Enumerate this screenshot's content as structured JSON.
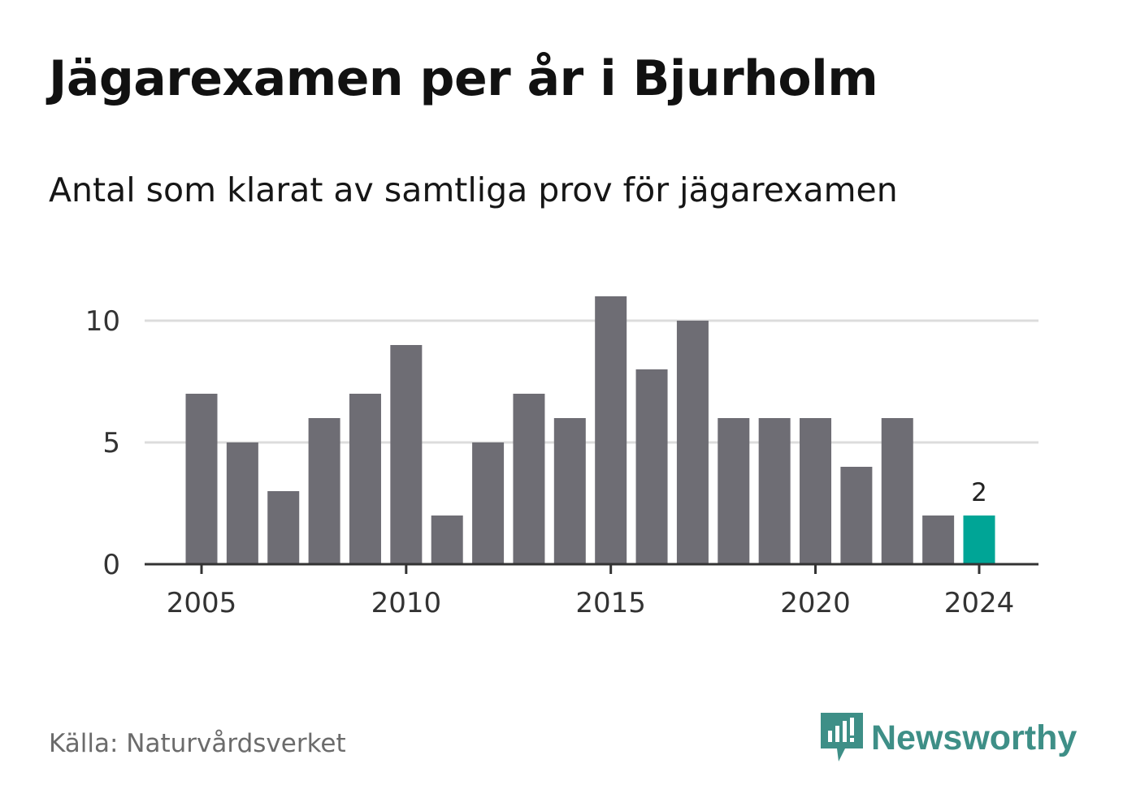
{
  "title": "Jägarexamen per år i Bjurholm",
  "subtitle": "Antal som klarat av samtliga prov för jägarexamen",
  "source": "Källa: Naturvårdsverket",
  "brand": "Newsworthy",
  "colors": {
    "bar": "#6e6d74",
    "highlight": "#00a596",
    "grid": "#dcdcdc",
    "axis": "#333333",
    "brand": "#3e8f87"
  },
  "chart_data": {
    "type": "bar",
    "x": [
      2005,
      2006,
      2007,
      2008,
      2009,
      2010,
      2011,
      2012,
      2013,
      2014,
      2015,
      2016,
      2017,
      2018,
      2019,
      2020,
      2021,
      2022,
      2023,
      2024
    ],
    "values": [
      7,
      5,
      3,
      6,
      7,
      9,
      2,
      5,
      7,
      6,
      11,
      8,
      10,
      6,
      6,
      6,
      4,
      6,
      2,
      2
    ],
    "x_ticks": [
      "2005",
      "2010",
      "2015",
      "2020",
      "2024"
    ],
    "y_ticks": [
      "0",
      "5",
      "10"
    ],
    "ylim": [
      0,
      11
    ],
    "highlight": {
      "x": 2024,
      "label": "2"
    },
    "grid": true
  }
}
